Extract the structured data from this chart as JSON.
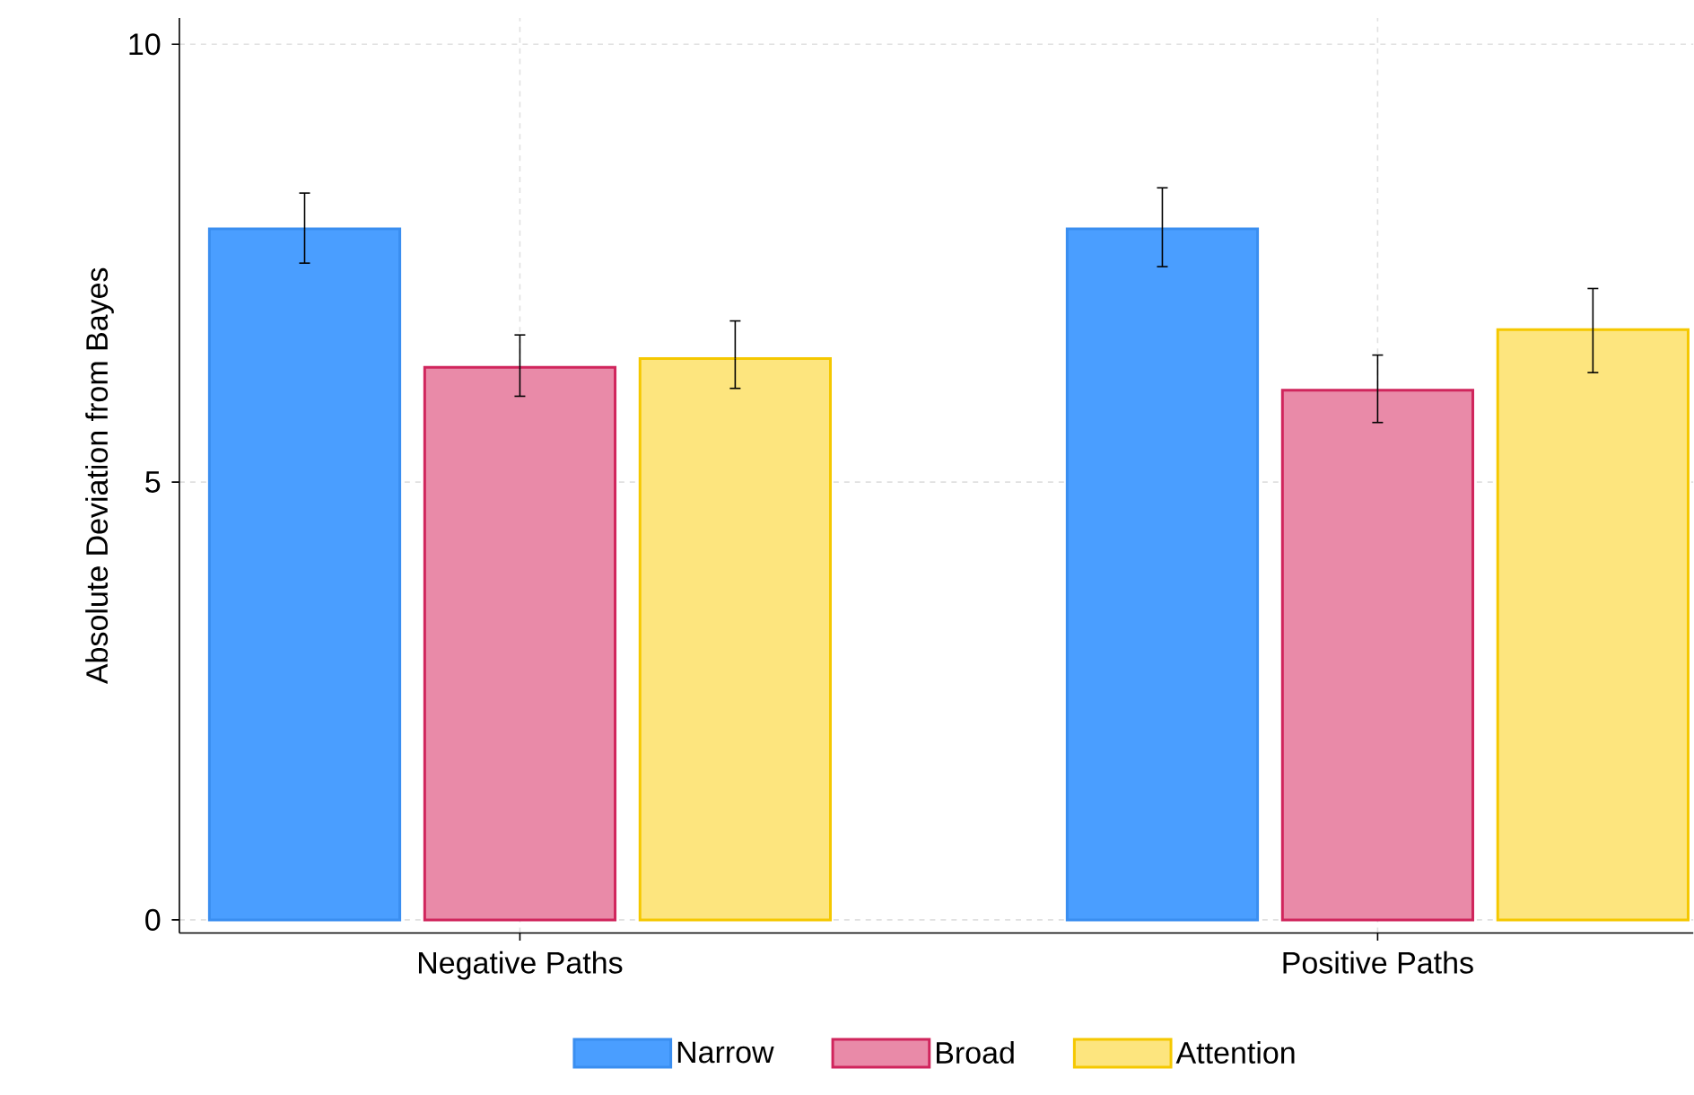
{
  "chart_data": {
    "type": "bar",
    "ylabel": "Absolute Deviation from Bayes",
    "categories": [
      "Negative Paths",
      "Positive Paths"
    ],
    "series": [
      {
        "name": "Narrow",
        "color": "#4a9eff",
        "values": [
          7.89,
          7.89
        ],
        "errors": [
          [
            7.5,
            8.3
          ],
          [
            7.46,
            8.36
          ]
        ]
      },
      {
        "name": "Broad",
        "color": "#e98aa8",
        "values": [
          6.31,
          6.05
        ],
        "errors": [
          [
            5.98,
            6.68
          ],
          [
            5.68,
            6.45
          ]
        ]
      },
      {
        "name": "Attention",
        "color": "#fde57e",
        "values": [
          6.41,
          6.74
        ],
        "errors": [
          [
            6.07,
            6.84
          ],
          [
            6.25,
            7.21
          ]
        ]
      }
    ],
    "ylim": [
      -0.15,
      10.3
    ],
    "yticks": [
      0,
      5,
      10
    ],
    "grid": true,
    "legend": "bottom"
  }
}
